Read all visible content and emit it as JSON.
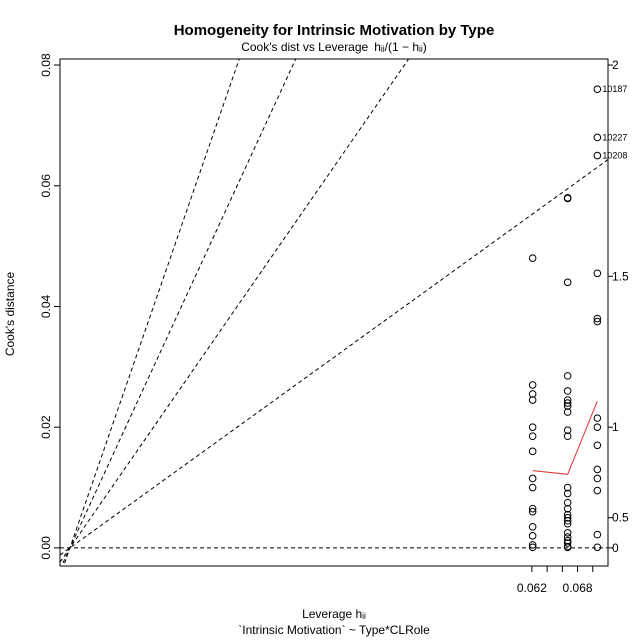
{
  "chart_data": {
    "type": "scatter",
    "title": "Homogeneity for Intrinsic Motivation by Type",
    "subtitle_prefix": "Cook's dist vs Leverage",
    "subtitle_formula": "hᵢᵢ/(1 − hᵢᵢ)",
    "xlabel": "Leverage  hᵢᵢ",
    "ylabel": "Cook's distance",
    "model_formula": "`Intrinsic Motivation` ~ Type*CLRole",
    "xlim": [
      0.0,
      0.072
    ],
    "ylim": [
      -0.003,
      0.081
    ],
    "x_ticks": [
      0.062,
      0.064,
      0.066,
      0.068,
      0.07
    ],
    "x_tick_labels": [
      "0.062",
      "",
      "",
      "0.068",
      ""
    ],
    "y_ticks": [
      0.0,
      0.02,
      0.04,
      0.06,
      0.08
    ],
    "y_tick_labels": [
      "0.00",
      "0.02",
      "0.04",
      "0.06",
      "0.08"
    ],
    "contour_lines": [
      {
        "level": 0,
        "label": "0"
      },
      {
        "level": 0.5,
        "label": "0.5"
      },
      {
        "level": 1,
        "label": "1"
      },
      {
        "level": 1.5,
        "label": "1.5"
      },
      {
        "level": 2,
        "label": "2"
      }
    ],
    "points": [
      {
        "x": 0.0621,
        "y": 0.048
      },
      {
        "x": 0.0621,
        "y": 0.027
      },
      {
        "x": 0.0621,
        "y": 0.0255
      },
      {
        "x": 0.0621,
        "y": 0.0245
      },
      {
        "x": 0.0621,
        "y": 0.02
      },
      {
        "x": 0.0621,
        "y": 0.0185
      },
      {
        "x": 0.0621,
        "y": 0.016
      },
      {
        "x": 0.0621,
        "y": 0.0115
      },
      {
        "x": 0.0621,
        "y": 0.01
      },
      {
        "x": 0.0621,
        "y": 0.0065
      },
      {
        "x": 0.0621,
        "y": 0.006
      },
      {
        "x": 0.0621,
        "y": 0.0035
      },
      {
        "x": 0.0621,
        "y": 0.002
      },
      {
        "x": 0.0621,
        "y": 0.0005
      },
      {
        "x": 0.0621,
        "y": 0.0001
      },
      {
        "x": 0.0667,
        "y": 0.058
      },
      {
        "x": 0.0667,
        "y": 0.0579
      },
      {
        "x": 0.0667,
        "y": 0.044
      },
      {
        "x": 0.0667,
        "y": 0.0285
      },
      {
        "x": 0.0667,
        "y": 0.026
      },
      {
        "x": 0.0667,
        "y": 0.0245
      },
      {
        "x": 0.0667,
        "y": 0.024
      },
      {
        "x": 0.0667,
        "y": 0.0235
      },
      {
        "x": 0.0667,
        "y": 0.0225
      },
      {
        "x": 0.0667,
        "y": 0.0195
      },
      {
        "x": 0.0667,
        "y": 0.0185
      },
      {
        "x": 0.0667,
        "y": 0.01
      },
      {
        "x": 0.0667,
        "y": 0.009
      },
      {
        "x": 0.0667,
        "y": 0.0075
      },
      {
        "x": 0.0667,
        "y": 0.0065
      },
      {
        "x": 0.0667,
        "y": 0.0055
      },
      {
        "x": 0.0667,
        "y": 0.005
      },
      {
        "x": 0.0667,
        "y": 0.0045
      },
      {
        "x": 0.0667,
        "y": 0.004
      },
      {
        "x": 0.0667,
        "y": 0.0025
      },
      {
        "x": 0.0667,
        "y": 0.0018
      },
      {
        "x": 0.0667,
        "y": 0.0012
      },
      {
        "x": 0.0667,
        "y": 0.0008
      },
      {
        "x": 0.0667,
        "y": 0.0002
      },
      {
        "x": 0.0667,
        "y": 0.0001
      },
      {
        "x": 0.0706,
        "y": 0.076,
        "label": "10187"
      },
      {
        "x": 0.0706,
        "y": 0.068,
        "label": "10227"
      },
      {
        "x": 0.0706,
        "y": 0.065,
        "label": "10208"
      },
      {
        "x": 0.0706,
        "y": 0.0455
      },
      {
        "x": 0.0706,
        "y": 0.038
      },
      {
        "x": 0.0706,
        "y": 0.0375
      },
      {
        "x": 0.0706,
        "y": 0.0215
      },
      {
        "x": 0.0706,
        "y": 0.02
      },
      {
        "x": 0.0706,
        "y": 0.017
      },
      {
        "x": 0.0706,
        "y": 0.013
      },
      {
        "x": 0.0706,
        "y": 0.0115
      },
      {
        "x": 0.0706,
        "y": 0.0095
      },
      {
        "x": 0.0706,
        "y": 0.0022
      },
      {
        "x": 0.0706,
        "y": 0.0001
      }
    ],
    "smooth_line": {
      "color": "#e03030",
      "x": [
        0.0621,
        0.0667,
        0.0706
      ],
      "y": [
        0.0128,
        0.0122,
        0.0243
      ]
    },
    "grid": false
  }
}
